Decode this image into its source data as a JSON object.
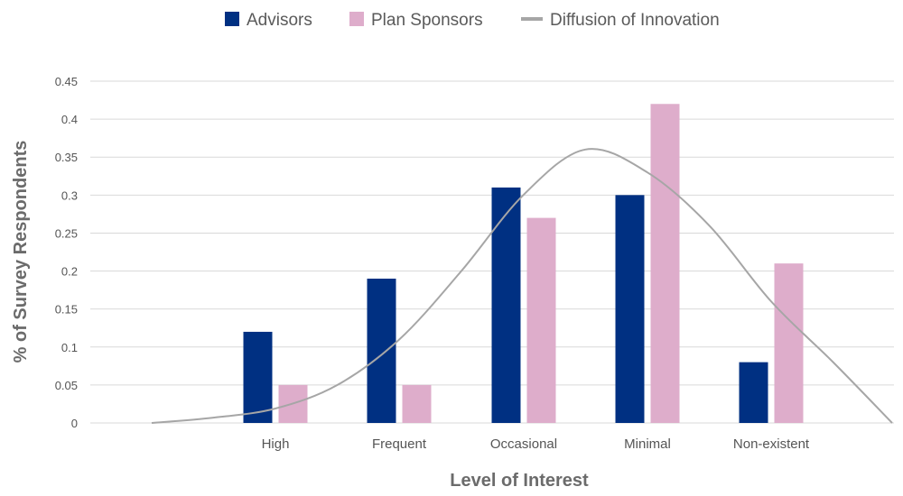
{
  "chart_data": {
    "type": "bar",
    "categories": [
      "High",
      "Frequent",
      "Occasional",
      "Minimal",
      "Non-existent"
    ],
    "series": [
      {
        "name": "Advisors",
        "values": [
          0.12,
          0.19,
          0.31,
          0.3,
          0.08
        ],
        "color": "#003082"
      },
      {
        "name": "Plan Sponsors",
        "values": [
          0.05,
          0.05,
          0.27,
          0.42,
          0.21
        ],
        "color": "#deadcb"
      }
    ],
    "line_series": {
      "name": "Diffusion of Innovation",
      "color": "#a6a6a6",
      "description_points_x_in_category_units": [
        -1.0,
        -0.5,
        0.0,
        0.5,
        1.0,
        1.5,
        2.0,
        2.5,
        3.0,
        3.5,
        4.0,
        4.5,
        5.0
      ],
      "values": [
        0.0,
        0.007,
        0.019,
        0.05,
        0.11,
        0.2,
        0.3,
        0.36,
        0.33,
        0.26,
        0.16,
        0.08,
        0.0
      ]
    },
    "xlabel": "Level of Interest",
    "ylabel": "% of Survey Respondents",
    "ylim": [
      0,
      0.45
    ],
    "yticks": [
      "0",
      "0.05",
      "0.1",
      "0.15",
      "0.2",
      "0.25",
      "0.3",
      "0.35",
      "0.4",
      "0.45"
    ],
    "grid": true,
    "legend_position": "top-center"
  }
}
